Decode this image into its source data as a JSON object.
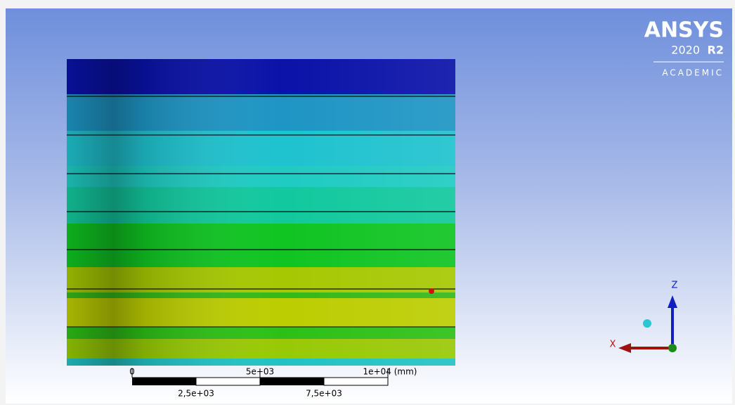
{
  "logo": {
    "product": "ANSYS",
    "version": "2020",
    "release": "R2",
    "edition": "ACADEMIC"
  },
  "scale_bar": {
    "top_labels": [
      "0",
      "5e+03",
      "1e+04 (mm)"
    ],
    "bottom_labels": [
      "2,5e+03",
      "7,5e+03"
    ]
  },
  "triad": {
    "z_label": "Z",
    "x_label": "X"
  }
}
